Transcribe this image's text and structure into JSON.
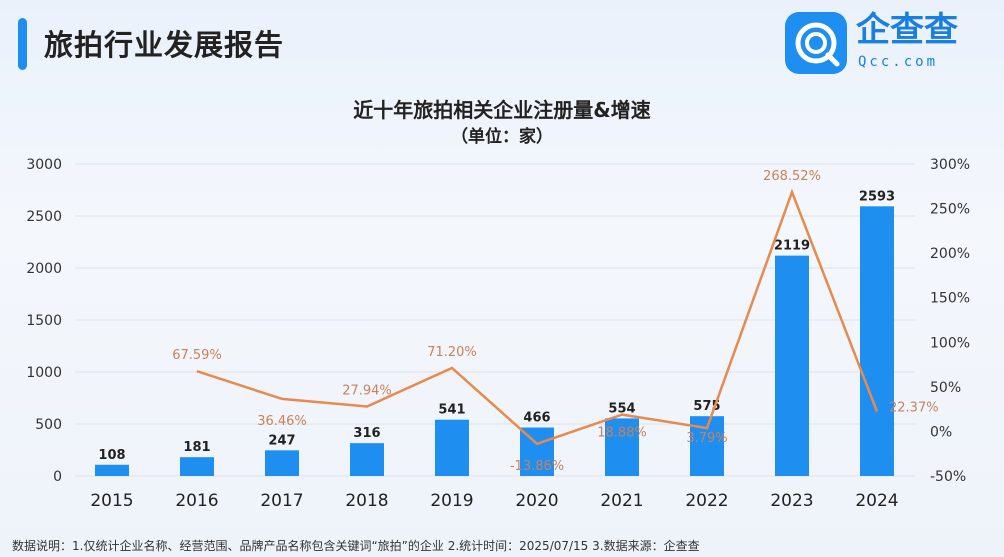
{
  "header": {
    "title": "旅拍行业发展报告",
    "logo_name": "企查查",
    "logo_sub": "Qcc.com"
  },
  "chart_data": {
    "type": "bar+line",
    "title": "近十年旅拍相关企业注册量&增速",
    "subtitle": "（单位：家）",
    "categories": [
      "2015",
      "2016",
      "2017",
      "2018",
      "2019",
      "2020",
      "2021",
      "2022",
      "2023",
      "2024"
    ],
    "series": [
      {
        "type": "bar",
        "axis": "left",
        "color": "#1f8ef1",
        "values": [
          108,
          181,
          247,
          316,
          541,
          466,
          554,
          575,
          2119,
          2593
        ]
      },
      {
        "type": "line",
        "axis": "right",
        "color": "#e8894d",
        "values": [
          null,
          67.59,
          36.46,
          27.94,
          71.2,
          -13.86,
          18.88,
          3.79,
          268.52,
          22.37
        ],
        "labels": [
          "",
          "67.59%",
          "36.46%",
          "27.94%",
          "71.20%",
          "-13.86%",
          "18.88%",
          "3.79%",
          "268.52%",
          "22.37%"
        ]
      }
    ],
    "left_axis": {
      "ylim": [
        0,
        3000
      ],
      "ticks": [
        "0",
        "500",
        "1000",
        "1500",
        "2000",
        "2500",
        "3000"
      ]
    },
    "right_axis": {
      "ylim": [
        -50,
        300
      ],
      "ticks": [
        "-50%",
        "0%",
        "50%",
        "100%",
        "150%",
        "200%",
        "250%",
        "300%"
      ]
    },
    "grid": true
  },
  "footer": {
    "note": "数据说明：1.仅统计企业名称、经营范围、品牌产品名称包含关键词“旅拍”的企业  2.统计时间：2025/07/15   3.数据来源：企查查"
  }
}
